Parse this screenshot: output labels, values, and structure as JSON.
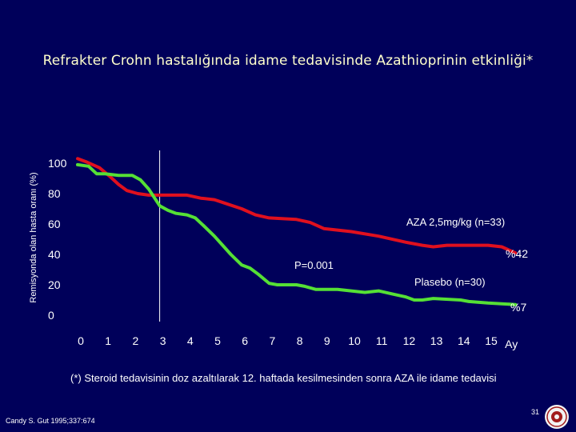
{
  "slide": {
    "title": "Refrakter Crohn hastalığında idame tedavisinde Azathioprinin etkinliği*",
    "footnote": "(*) Steroid tedavisinin doz azaltılarak 12. haftada kesilmesinden sonra AZA ile idame tedavisi",
    "source": "Candy S. Gut 1995;337:674",
    "page_number": "31"
  },
  "chart_data": {
    "type": "line",
    "title": "",
    "xlabel": "Ay",
    "ylabel": "Remisyonda olan hasta oranı (%)",
    "xlim": [
      0,
      16
    ],
    "ylim": [
      0,
      105
    ],
    "x_ticks": [
      "0",
      "1",
      "2",
      "3",
      "4",
      "5",
      "6",
      "7",
      "8",
      "9",
      "10",
      "11",
      "12",
      "13",
      "14",
      "15"
    ],
    "y_ticks": [
      "100",
      "80",
      "60",
      "40",
      "20",
      "0"
    ],
    "vertical_marker_x": 3,
    "series": [
      {
        "name": "AZA 2,5mg/kg (n=33)",
        "color": "#e0101e",
        "end_label": "%42",
        "points": [
          [
            0,
            103
          ],
          [
            0.3,
            101
          ],
          [
            0.8,
            97
          ],
          [
            1.2,
            91
          ],
          [
            1.5,
            86
          ],
          [
            1.8,
            82
          ],
          [
            2.2,
            80
          ],
          [
            2.6,
            79
          ],
          [
            3,
            79
          ],
          [
            4,
            79
          ],
          [
            4.5,
            77
          ],
          [
            5,
            76
          ],
          [
            5.5,
            73
          ],
          [
            6,
            70
          ],
          [
            6.5,
            66
          ],
          [
            7,
            64
          ],
          [
            8,
            63
          ],
          [
            8.5,
            61
          ],
          [
            9,
            57
          ],
          [
            10,
            55
          ],
          [
            11,
            52
          ],
          [
            12,
            48
          ],
          [
            12.6,
            46
          ],
          [
            13,
            45
          ],
          [
            13.5,
            46
          ],
          [
            15,
            46
          ],
          [
            15.5,
            45
          ],
          [
            16,
            41
          ]
        ]
      },
      {
        "name": "Plasebo (n=30)",
        "color": "#55e035",
        "end_label": "%7",
        "p_value": "P=0.001",
        "points": [
          [
            0,
            99
          ],
          [
            0.4,
            98
          ],
          [
            0.7,
            93
          ],
          [
            1,
            93
          ],
          [
            1.5,
            92
          ],
          [
            2,
            92
          ],
          [
            2.3,
            89
          ],
          [
            2.6,
            83
          ],
          [
            3,
            72
          ],
          [
            3.3,
            69
          ],
          [
            3.6,
            67
          ],
          [
            4,
            66
          ],
          [
            4.3,
            64
          ],
          [
            4.6,
            59
          ],
          [
            5,
            52
          ],
          [
            5.3,
            46
          ],
          [
            5.6,
            40
          ],
          [
            6,
            33
          ],
          [
            6.3,
            31
          ],
          [
            6.6,
            27
          ],
          [
            7,
            21
          ],
          [
            7.3,
            20
          ],
          [
            8,
            20
          ],
          [
            8.3,
            19
          ],
          [
            8.7,
            17
          ],
          [
            9,
            17
          ],
          [
            9.5,
            17
          ],
          [
            10,
            16
          ],
          [
            10.5,
            15
          ],
          [
            11,
            16
          ],
          [
            11.5,
            14
          ],
          [
            12,
            12
          ],
          [
            12.3,
            10
          ],
          [
            12.6,
            10
          ],
          [
            13,
            11
          ],
          [
            14,
            10
          ],
          [
            14.3,
            9
          ],
          [
            15,
            8
          ],
          [
            16,
            7
          ]
        ]
      }
    ]
  },
  "colors": {
    "background": "#00005a",
    "title": "#ffffcc",
    "text": "#ffffff"
  },
  "icons": {
    "seal": "university-seal-icon"
  }
}
